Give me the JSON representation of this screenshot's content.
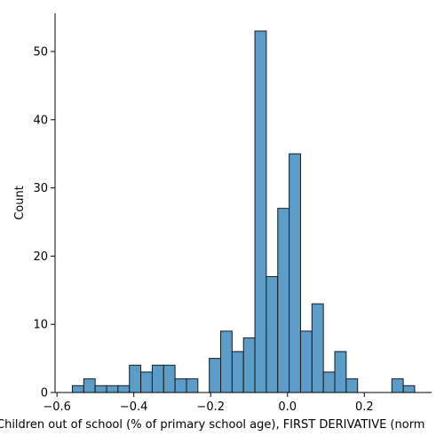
{
  "chart_data": {
    "type": "bar",
    "title": "",
    "xlabel": "Children out of school (% of primary school age), FIRST DERIVATIVE (norm",
    "ylabel": "Count",
    "xlim": [
      -0.605,
      0.375
    ],
    "ylim": [
      0,
      55.6
    ],
    "xticks": [
      -0.6,
      -0.4,
      -0.2,
      0.0,
      0.2
    ],
    "xtick_labels": [
      "−0.6",
      "−0.4",
      "−0.2",
      "0.0",
      "0.2"
    ],
    "yticks": [
      0,
      10,
      20,
      30,
      40,
      50
    ],
    "ytick_labels": [
      "0",
      "10",
      "20",
      "30",
      "40",
      "50"
    ],
    "bin_start": -0.56,
    "bin_width": 0.0297,
    "values": [
      1,
      2,
      1,
      1,
      1,
      4,
      3,
      4,
      4,
      2,
      2,
      0,
      5,
      9,
      6,
      8,
      53,
      17,
      27,
      35,
      9,
      13,
      3,
      6,
      2,
      0,
      0,
      0,
      2,
      1
    ],
    "bar_color": "#5b9cc8",
    "edge_color": "#1a1a1a",
    "grid": false,
    "legend": "none"
  }
}
